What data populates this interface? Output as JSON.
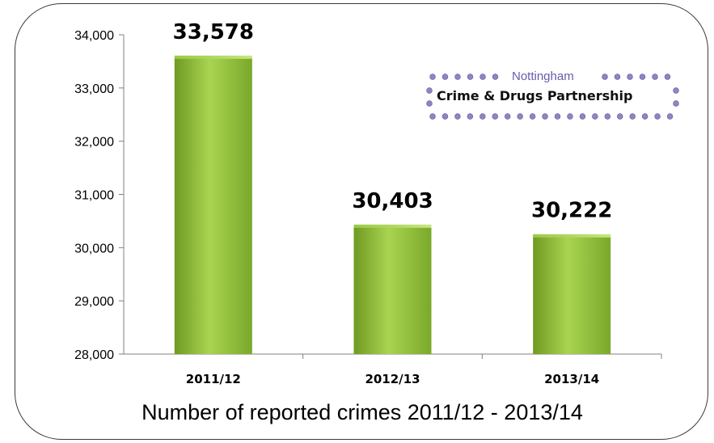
{
  "chart_data": {
    "type": "bar",
    "categories": [
      "2011/12",
      "2012/13",
      "2013/14"
    ],
    "values": [
      33578,
      30403,
      30222
    ],
    "data_labels": [
      "33,578",
      "30,403",
      "30,222"
    ],
    "ylim": [
      28000,
      34000
    ],
    "yticks": [
      28000,
      29000,
      30000,
      31000,
      32000,
      33000,
      34000
    ],
    "ytick_labels": [
      "28,000",
      "29,000",
      "30,000",
      "31,000",
      "32,000",
      "33,000",
      "34,000"
    ],
    "grid": false,
    "bar_color": "#8fc23a",
    "caption": "Number of reported crimes  2011/12 - 2013/14"
  },
  "logo": {
    "line1": "Nottingham",
    "line2": "Crime & Drugs Partnership",
    "dot_color": "#8e86c2"
  }
}
